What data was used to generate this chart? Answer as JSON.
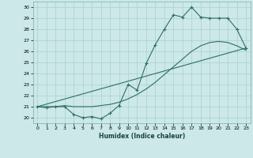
{
  "xlabel": "Humidex (Indice chaleur)",
  "x_ticks": [
    0,
    1,
    2,
    3,
    4,
    5,
    6,
    7,
    8,
    9,
    10,
    11,
    12,
    13,
    14,
    15,
    16,
    17,
    18,
    19,
    20,
    21,
    22,
    23
  ],
  "y_ticks": [
    20,
    21,
    22,
    23,
    24,
    25,
    26,
    27,
    28,
    29,
    30
  ],
  "ylim": [
    19.5,
    30.5
  ],
  "xlim": [
    -0.5,
    23.5
  ],
  "line_color": "#2e6e64",
  "bg_color": "#cce8e8",
  "grid_color": "#aad0d0",
  "line1_x": [
    0,
    1,
    2,
    3,
    4,
    5,
    6,
    7,
    8,
    9,
    10,
    11,
    12,
    13,
    14,
    15,
    16,
    17,
    18,
    19,
    20,
    21,
    22,
    23
  ],
  "line1_y": [
    21.0,
    20.9,
    21.0,
    21.0,
    20.3,
    20.0,
    20.1,
    19.9,
    20.4,
    21.1,
    23.0,
    22.5,
    24.9,
    26.6,
    28.0,
    29.3,
    29.1,
    30.0,
    29.1,
    29.0,
    29.0,
    29.0,
    28.0,
    26.3
  ],
  "line2_x": [
    0,
    1,
    2,
    3,
    4,
    5,
    6,
    7,
    8,
    9,
    10,
    11,
    12,
    13,
    14,
    15,
    16,
    17,
    18,
    19,
    20,
    21,
    22,
    23
  ],
  "line2_y": [
    21.0,
    21.0,
    21.0,
    21.1,
    21.0,
    21.0,
    21.0,
    21.1,
    21.2,
    21.4,
    21.7,
    22.1,
    22.6,
    23.2,
    23.9,
    24.6,
    25.3,
    26.0,
    26.5,
    26.8,
    26.9,
    26.8,
    26.5,
    26.1
  ],
  "line3_x": [
    0,
    23
  ],
  "line3_y": [
    21.0,
    26.3
  ]
}
